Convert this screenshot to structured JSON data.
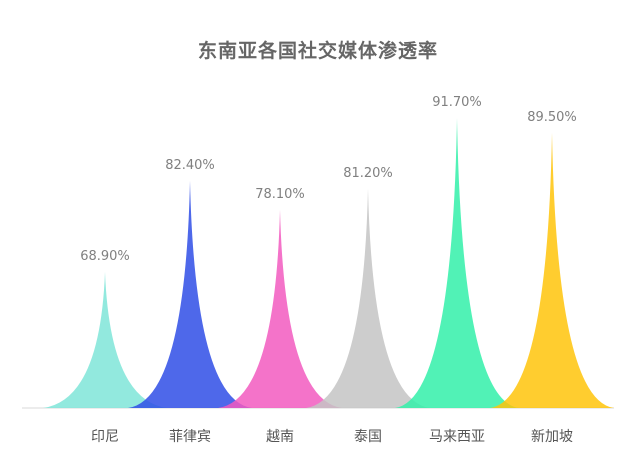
{
  "chart_data": {
    "type": "bar",
    "title": "东南亚各国社交媒体渗透率",
    "categories": [
      "印尼",
      "菲律宾",
      "越南",
      "泰国",
      "马来西亚",
      "新加坡"
    ],
    "values": [
      68.9,
      82.4,
      78.1,
      81.2,
      91.7,
      89.5
    ],
    "value_labels": [
      "68.90%",
      "82.40%",
      "78.10%",
      "81.20%",
      "91.70%",
      "89.50%"
    ],
    "colors": [
      "#7fe5d8",
      "#2f4de6",
      "#f25abf",
      "#c4c4c4",
      "#33f0a9",
      "#ffc40a"
    ],
    "bar_style": "pictorial-spike",
    "xlabel": "",
    "ylabel": "",
    "grid": false
  }
}
